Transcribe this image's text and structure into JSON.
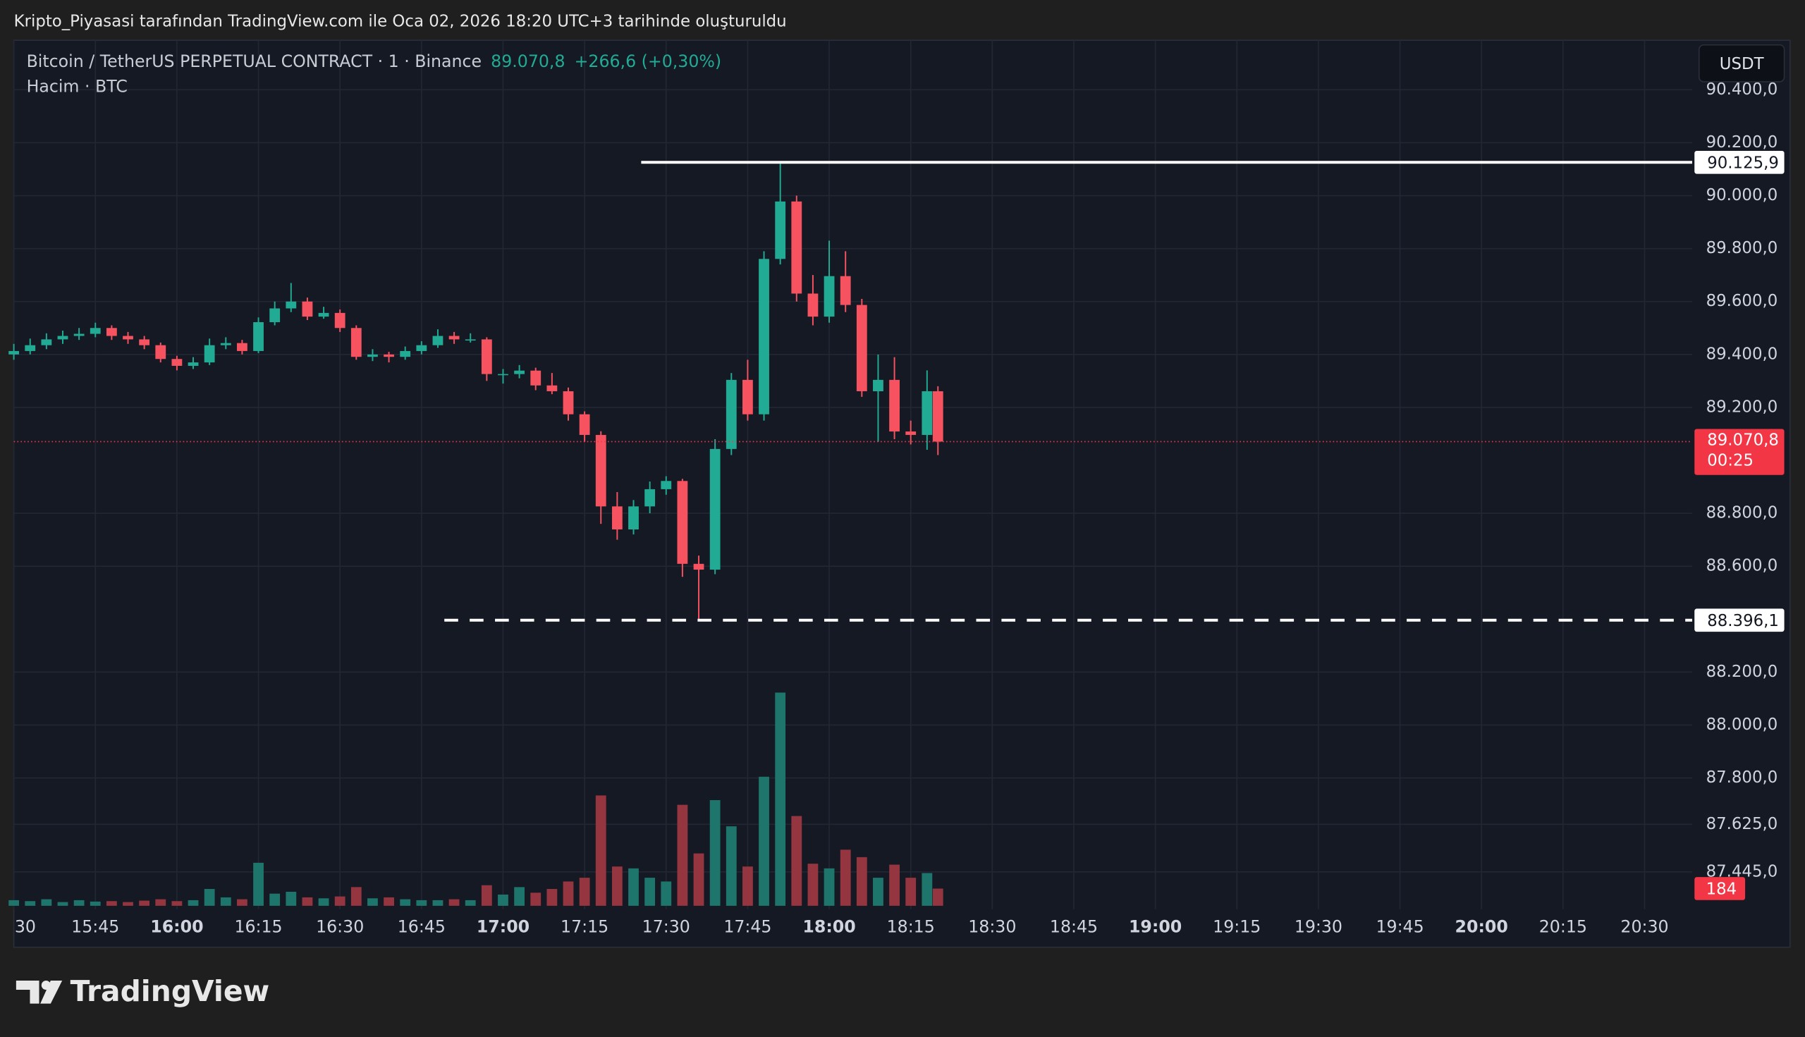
{
  "chart_data": {
    "type": "candlestick",
    "caption": "Kripto_Piyasasi tarafından TradingView.com ile Oca 02, 2026 18:20 UTC+3 tarihinde oluşturuldu",
    "title": "Bitcoin / TetherUS PERPETUAL CONTRACT · 1 · Binance",
    "last_price": {
      "value": 89070.8,
      "label": "89.070,8"
    },
    "change": "+266,6 (+0,30%)",
    "countdown": "00:25",
    "volume_label": "Hacim · BTC",
    "currency": "USDT",
    "brand": "TradingView",
    "up_color": "#22ab94",
    "down_color": "#f7525f",
    "volume_up_color": "#1d756b",
    "volume_down_color": "#94353f",
    "grid": true,
    "x": [
      "15:30",
      "15:33",
      "15:36",
      "15:39",
      "15:42",
      "15:45",
      "15:48",
      "15:51",
      "15:54",
      "15:57",
      "16:00",
      "16:03",
      "16:06",
      "16:09",
      "16:12",
      "16:15",
      "16:18",
      "16:21",
      "16:24",
      "16:27",
      "16:30",
      "16:33",
      "16:36",
      "16:39",
      "16:42",
      "16:45",
      "16:48",
      "16:51",
      "16:54",
      "16:57",
      "17:00",
      "17:03",
      "17:06",
      "17:09",
      "17:12",
      "17:15",
      "17:18",
      "17:21",
      "17:24",
      "17:27",
      "17:30",
      "17:33",
      "17:36",
      "17:39",
      "17:42",
      "17:45",
      "17:48",
      "17:51",
      "17:54",
      "17:57",
      "18:00",
      "18:03",
      "18:06",
      "18:09",
      "18:12",
      "18:15",
      "18:18",
      "18:20"
    ],
    "open": [
      89400,
      89413,
      89435,
      89457,
      89470,
      89478,
      89500,
      89470,
      89457,
      89435,
      89383,
      89357,
      89370,
      89435,
      89443,
      89413,
      89522,
      89574,
      89600,
      89543,
      89557,
      89500,
      89391,
      89400,
      89391,
      89413,
      89435,
      89470,
      89457,
      89457,
      89326,
      89326,
      89339,
      89283,
      89261,
      89174,
      89096,
      88826,
      88739,
      88826,
      88891,
      88922,
      88609,
      88587,
      89043,
      89304,
      89174,
      89761,
      89978,
      89630,
      89543,
      89696,
      89587,
      89261,
      89304,
      89109,
      89096,
      89261
    ],
    "high": [
      89440,
      89460,
      89480,
      89490,
      89500,
      89520,
      89510,
      89485,
      89470,
      89445,
      89395,
      89390,
      89460,
      89465,
      89455,
      89540,
      89600,
      89670,
      89615,
      89580,
      89570,
      89510,
      89420,
      89410,
      89430,
      89450,
      89495,
      89485,
      89480,
      89465,
      89345,
      89360,
      89350,
      89330,
      89275,
      89185,
      89110,
      88880,
      88850,
      88920,
      88940,
      88930,
      88640,
      89080,
      89330,
      89380,
      89790,
      90125.9,
      90000,
      89700,
      89830,
      89790,
      89610,
      89400,
      89390,
      89150,
      89340,
      89280
    ],
    "low": [
      89380,
      89400,
      89420,
      89440,
      89455,
      89465,
      89455,
      89440,
      89420,
      89370,
      89340,
      89345,
      89360,
      89420,
      89400,
      89405,
      89510,
      89560,
      89530,
      89535,
      89485,
      89380,
      89375,
      89370,
      89380,
      89400,
      89425,
      89440,
      89445,
      89300,
      89290,
      89310,
      89265,
      89250,
      89150,
      89070,
      88760,
      88700,
      88720,
      88800,
      88870,
      88560,
      88396.1,
      88570,
      89020,
      89150,
      89150,
      89740,
      89600,
      89510,
      89520,
      89560,
      89240,
      89070,
      89080,
      89060,
      89040,
      89020
    ],
    "close": [
      89413,
      89435,
      89457,
      89470,
      89478,
      89500,
      89470,
      89457,
      89435,
      89383,
      89357,
      89370,
      89435,
      89443,
      89413,
      89522,
      89574,
      89600,
      89543,
      89557,
      89500,
      89391,
      89400,
      89391,
      89413,
      89435,
      89470,
      89457,
      89457,
      89326,
      89326,
      89339,
      89283,
      89261,
      89174,
      89096,
      88826,
      88739,
      88826,
      88891,
      88922,
      88609,
      88587,
      89043,
      89304,
      89174,
      89761,
      89978,
      89630,
      89543,
      89696,
      89587,
      89261,
      89304,
      89109,
      89096,
      89261,
      89070.8
    ],
    "volume": [
      60,
      50,
      70,
      40,
      60,
      45,
      50,
      40,
      55,
      70,
      50,
      60,
      180,
      90,
      70,
      460,
      130,
      150,
      90,
      80,
      100,
      200,
      80,
      90,
      70,
      60,
      60,
      70,
      60,
      220,
      120,
      200,
      140,
      180,
      260,
      300,
      1180,
      420,
      400,
      300,
      260,
      1080,
      560,
      1130,
      850,
      420,
      1380,
      2280,
      960,
      450,
      400,
      600,
      520,
      300,
      440,
      300,
      350,
      184
    ],
    "vlim": [
      0,
      2400
    ],
    "xlim": [
      "15:30",
      "20:36"
    ],
    "xticks": [
      {
        "value": "15:30",
        "label": "30"
      },
      "15:45",
      "16:00",
      "16:15",
      "16:30",
      "16:45",
      "17:00",
      "17:15",
      "17:30",
      "17:45",
      "18:00",
      "18:15",
      "18:30",
      "18:45",
      "19:00",
      "19:15",
      "19:30",
      "19:45",
      "20:00",
      "20:15",
      "20:30"
    ],
    "ylim": [
      87304,
      90587
    ],
    "yticks": [
      {
        "value": 90400,
        "label": "90.400,0"
      },
      {
        "value": 90200,
        "label": "90.200,0"
      },
      {
        "value": 90000,
        "label": "90.000,0"
      },
      {
        "value": 89800,
        "label": "89.800,0"
      },
      {
        "value": 89600,
        "label": "89.600,0"
      },
      {
        "value": 89400,
        "label": "89.400,0"
      },
      {
        "value": 89200,
        "label": "89.200,0"
      },
      {
        "value": 88800,
        "label": "88.800,0"
      },
      {
        "value": 88600,
        "label": "88.600,0"
      },
      {
        "value": 88200,
        "label": "88.200,0"
      },
      {
        "value": 88000,
        "label": "88.000,0"
      },
      {
        "value": 87800,
        "label": "87.800,0"
      },
      {
        "value": 87625,
        "label": "87.625,0"
      },
      {
        "value": 87445,
        "label": "87.445,0"
      }
    ],
    "levels": [
      {
        "value": 90125.9,
        "label": "90.125,9",
        "style": "solid"
      },
      {
        "value": 88396.1,
        "label": "88.396,1",
        "style": "dashed"
      }
    ]
  }
}
